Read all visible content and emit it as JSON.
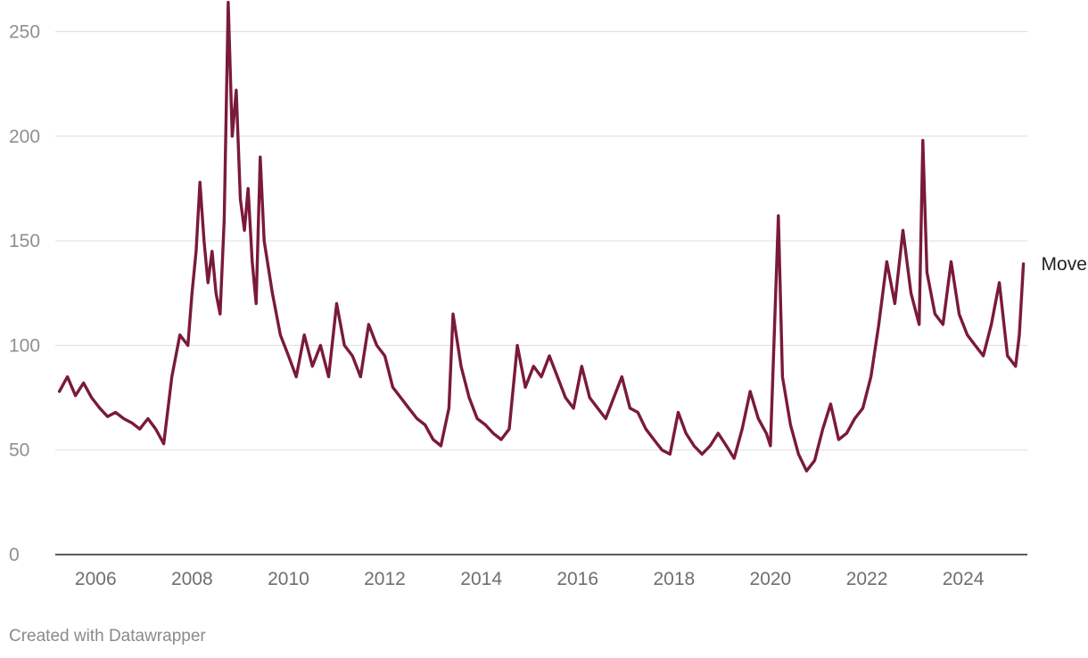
{
  "footer": {
    "credit": "Created with Datawrapper"
  },
  "chart_data": {
    "type": "line",
    "title": "",
    "xlabel": "",
    "ylabel": "",
    "ylim": [
      0,
      260
    ],
    "xlim": [
      "2005-03-01",
      "2025-05-01"
    ],
    "y_ticks": [
      "0",
      "50",
      "100",
      "150",
      "200",
      "250"
    ],
    "x_ticks": [
      "2006",
      "2008",
      "2010",
      "2012",
      "2014",
      "2016",
      "2018",
      "2020",
      "2022",
      "2024"
    ],
    "grid": true,
    "color": "#7a1a3b",
    "series": [
      {
        "name": "Move",
        "points": [
          [
            "2005-04-01",
            78
          ],
          [
            "2005-06-01",
            85
          ],
          [
            "2005-08-01",
            76
          ],
          [
            "2005-10-01",
            82
          ],
          [
            "2005-12-01",
            75
          ],
          [
            "2006-02-01",
            70
          ],
          [
            "2006-04-01",
            66
          ],
          [
            "2006-06-01",
            68
          ],
          [
            "2006-08-01",
            65
          ],
          [
            "2006-10-01",
            63
          ],
          [
            "2006-12-01",
            60
          ],
          [
            "2007-02-01",
            65
          ],
          [
            "2007-04-01",
            60
          ],
          [
            "2007-06-01",
            53
          ],
          [
            "2007-08-01",
            85
          ],
          [
            "2007-10-01",
            105
          ],
          [
            "2007-12-01",
            100
          ],
          [
            "2008-01-01",
            125
          ],
          [
            "2008-02-01",
            145
          ],
          [
            "2008-03-01",
            178
          ],
          [
            "2008-04-01",
            150
          ],
          [
            "2008-05-01",
            130
          ],
          [
            "2008-06-01",
            145
          ],
          [
            "2008-07-01",
            125
          ],
          [
            "2008-08-01",
            115
          ],
          [
            "2008-09-01",
            160
          ],
          [
            "2008-10-01",
            264
          ],
          [
            "2008-11-01",
            200
          ],
          [
            "2008-12-01",
            222
          ],
          [
            "2009-01-01",
            170
          ],
          [
            "2009-02-01",
            155
          ],
          [
            "2009-03-01",
            175
          ],
          [
            "2009-04-01",
            140
          ],
          [
            "2009-05-01",
            120
          ],
          [
            "2009-06-01",
            190
          ],
          [
            "2009-07-01",
            150
          ],
          [
            "2009-09-01",
            125
          ],
          [
            "2009-11-01",
            105
          ],
          [
            "2010-01-01",
            95
          ],
          [
            "2010-03-01",
            85
          ],
          [
            "2010-05-01",
            105
          ],
          [
            "2010-07-01",
            90
          ],
          [
            "2010-09-01",
            100
          ],
          [
            "2010-11-01",
            85
          ],
          [
            "2011-01-01",
            120
          ],
          [
            "2011-03-01",
            100
          ],
          [
            "2011-05-01",
            95
          ],
          [
            "2011-07-01",
            85
          ],
          [
            "2011-09-01",
            110
          ],
          [
            "2011-11-01",
            100
          ],
          [
            "2012-01-01",
            95
          ],
          [
            "2012-03-01",
            80
          ],
          [
            "2012-05-01",
            75
          ],
          [
            "2012-07-01",
            70
          ],
          [
            "2012-09-01",
            65
          ],
          [
            "2012-11-01",
            62
          ],
          [
            "2013-01-01",
            55
          ],
          [
            "2013-03-01",
            52
          ],
          [
            "2013-05-01",
            70
          ],
          [
            "2013-06-01",
            115
          ],
          [
            "2013-08-01",
            90
          ],
          [
            "2013-10-01",
            75
          ],
          [
            "2013-12-01",
            65
          ],
          [
            "2014-02-01",
            62
          ],
          [
            "2014-04-01",
            58
          ],
          [
            "2014-06-01",
            55
          ],
          [
            "2014-08-01",
            60
          ],
          [
            "2014-10-01",
            100
          ],
          [
            "2014-12-01",
            80
          ],
          [
            "2015-02-01",
            90
          ],
          [
            "2015-04-01",
            85
          ],
          [
            "2015-06-01",
            95
          ],
          [
            "2015-08-01",
            85
          ],
          [
            "2015-10-01",
            75
          ],
          [
            "2015-12-01",
            70
          ],
          [
            "2016-02-01",
            90
          ],
          [
            "2016-04-01",
            75
          ],
          [
            "2016-06-01",
            70
          ],
          [
            "2016-08-01",
            65
          ],
          [
            "2016-10-01",
            75
          ],
          [
            "2016-12-01",
            85
          ],
          [
            "2017-02-01",
            70
          ],
          [
            "2017-04-01",
            68
          ],
          [
            "2017-06-01",
            60
          ],
          [
            "2017-08-01",
            55
          ],
          [
            "2017-10-01",
            50
          ],
          [
            "2017-12-01",
            48
          ],
          [
            "2018-02-01",
            68
          ],
          [
            "2018-04-01",
            58
          ],
          [
            "2018-06-01",
            52
          ],
          [
            "2018-08-01",
            48
          ],
          [
            "2018-10-01",
            52
          ],
          [
            "2018-12-01",
            58
          ],
          [
            "2019-02-01",
            52
          ],
          [
            "2019-04-01",
            46
          ],
          [
            "2019-06-01",
            60
          ],
          [
            "2019-08-01",
            78
          ],
          [
            "2019-10-01",
            65
          ],
          [
            "2019-12-01",
            58
          ],
          [
            "2020-01-01",
            52
          ],
          [
            "2020-03-01",
            162
          ],
          [
            "2020-04-01",
            85
          ],
          [
            "2020-06-01",
            62
          ],
          [
            "2020-08-01",
            48
          ],
          [
            "2020-10-01",
            40
          ],
          [
            "2020-12-01",
            45
          ],
          [
            "2021-02-01",
            60
          ],
          [
            "2021-04-01",
            72
          ],
          [
            "2021-06-01",
            55
          ],
          [
            "2021-08-01",
            58
          ],
          [
            "2021-10-01",
            65
          ],
          [
            "2021-12-01",
            70
          ],
          [
            "2022-02-01",
            85
          ],
          [
            "2022-04-01",
            110
          ],
          [
            "2022-06-01",
            140
          ],
          [
            "2022-08-01",
            120
          ],
          [
            "2022-10-01",
            155
          ],
          [
            "2022-12-01",
            125
          ],
          [
            "2023-02-01",
            110
          ],
          [
            "2023-03-01",
            198
          ],
          [
            "2023-04-01",
            135
          ],
          [
            "2023-06-01",
            115
          ],
          [
            "2023-08-01",
            110
          ],
          [
            "2023-10-01",
            140
          ],
          [
            "2023-12-01",
            115
          ],
          [
            "2024-02-01",
            105
          ],
          [
            "2024-04-01",
            100
          ],
          [
            "2024-06-01",
            95
          ],
          [
            "2024-08-01",
            110
          ],
          [
            "2024-10-01",
            130
          ],
          [
            "2024-12-01",
            95
          ],
          [
            "2025-02-01",
            90
          ],
          [
            "2025-03-01",
            105
          ],
          [
            "2025-04-01",
            139
          ]
        ]
      }
    ]
  }
}
